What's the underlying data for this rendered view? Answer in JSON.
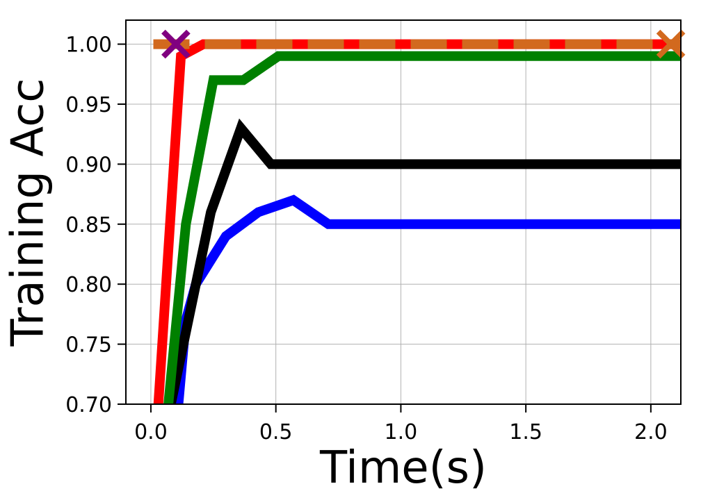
{
  "chart_data": {
    "type": "line",
    "title": "",
    "xlabel": "Time(s)",
    "ylabel": "Training Acc",
    "xlim": [
      -0.1,
      2.12
    ],
    "ylim": [
      0.7,
      1.02
    ],
    "xticks": [
      0.0,
      0.5,
      1.0,
      1.5,
      2.0
    ],
    "xtick_labels": [
      "0.0",
      "0.5",
      "1.0",
      "1.5",
      "2.0"
    ],
    "yticks": [
      0.7,
      0.75,
      0.8,
      0.85,
      0.9,
      0.95,
      1.0
    ],
    "ytick_labels": [
      "0.70",
      "0.75",
      "0.80",
      "0.85",
      "0.90",
      "0.95",
      "1.00"
    ],
    "grid": true,
    "legend": "none",
    "series": [
      {
        "color": "#0000ff",
        "style": "solid",
        "x": [
          0.11,
          0.14,
          0.18,
          0.3,
          0.43,
          0.57,
          0.71,
          2.12
        ],
        "y": [
          0.7,
          0.77,
          0.8,
          0.84,
          0.86,
          0.87,
          0.85,
          0.85
        ]
      },
      {
        "color": "#000000",
        "style": "solid",
        "x": [
          0.08,
          0.15,
          0.24,
          0.36,
          0.48,
          2.12
        ],
        "y": [
          0.7,
          0.77,
          0.86,
          0.93,
          0.9,
          0.9
        ]
      },
      {
        "color": "#008000",
        "style": "solid",
        "x": [
          0.07,
          0.14,
          0.25,
          0.37,
          0.51,
          2.12
        ],
        "y": [
          0.7,
          0.85,
          0.97,
          0.97,
          0.99,
          0.99
        ]
      },
      {
        "color": "#ff0000",
        "style": "solid",
        "x": [
          0.03,
          0.12,
          0.21,
          2.12
        ],
        "y": [
          0.7,
          0.99,
          1.0,
          1.0
        ]
      },
      {
        "color": "#d2691e",
        "style": "dashed",
        "x": [
          0.01,
          2.12
        ],
        "y": [
          1.0,
          1.0
        ]
      }
    ],
    "markers": [
      {
        "shape": "x",
        "color": "#800080",
        "x": 0.1,
        "y": 1.0
      },
      {
        "shape": "x",
        "color": "#d2691e",
        "x": 2.08,
        "y": 1.0
      }
    ]
  }
}
